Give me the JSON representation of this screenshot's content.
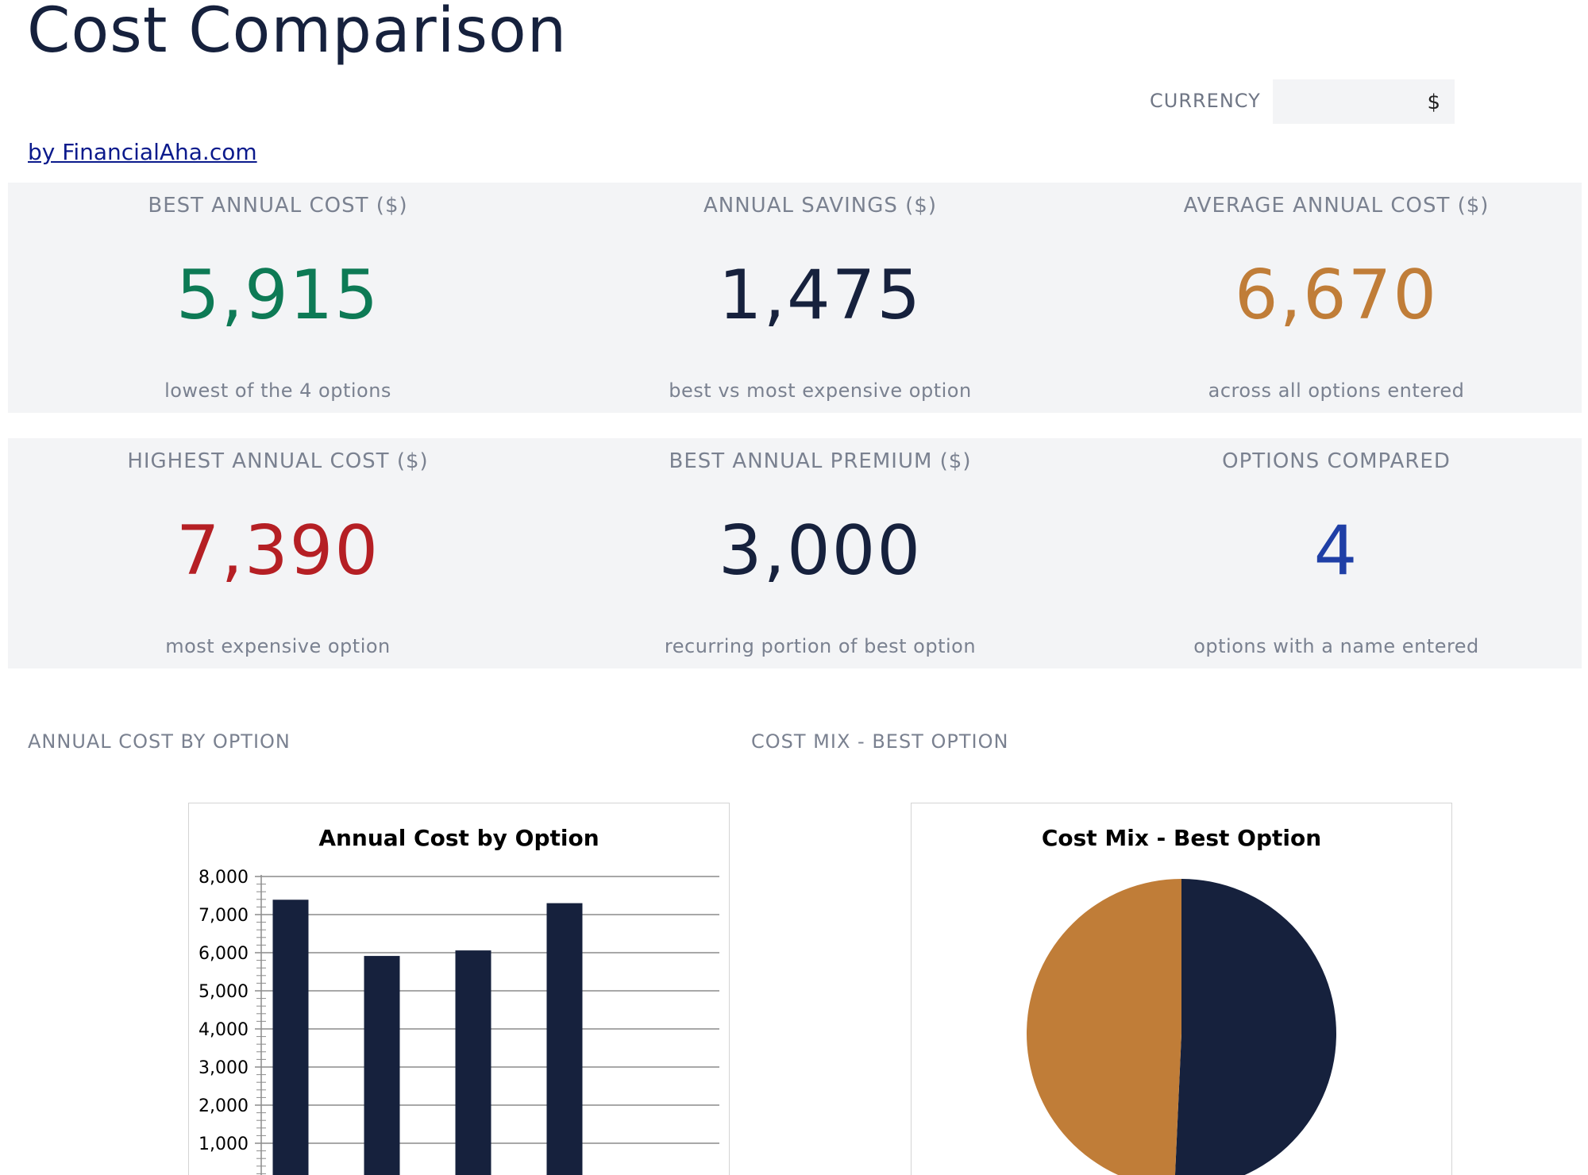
{
  "header": {
    "title": "Cost Comparison",
    "byline": "by FinancialAha.com",
    "currency_label": "CURRENCY",
    "currency_value": "$"
  },
  "kpis": [
    {
      "label": "BEST ANNUAL COST ($)",
      "value": "5,915",
      "sub": "lowest of the 4 options",
      "color": "#0d7a55"
    },
    {
      "label": "ANNUAL SAVINGS ($)",
      "value": "1,475",
      "sub": "best vs most expensive option",
      "color": "#16213d"
    },
    {
      "label": "AVERAGE ANNUAL COST ($)",
      "value": "6,670",
      "sub": "across all options entered",
      "color": "#c07d38"
    },
    {
      "label": "HIGHEST ANNUAL COST ($)",
      "value": "7,390",
      "sub": "most expensive option",
      "color": "#b51f24"
    },
    {
      "label": "BEST ANNUAL PREMIUM ($)",
      "value": "3,000",
      "sub": "recurring portion of best option",
      "color": "#16213d"
    },
    {
      "label": "OPTIONS COMPARED",
      "value": "4",
      "sub": "options with a name entered",
      "color": "#1f3fa6"
    }
  ],
  "sections": {
    "bar_label": "ANNUAL COST BY OPTION",
    "pie_label": "COST MIX - BEST OPTION"
  },
  "chart_data": [
    {
      "type": "bar",
      "title": "Annual Cost by Option",
      "categories": [
        "",
        "",
        "",
        ""
      ],
      "values": [
        7390,
        5915,
        6060,
        7300
      ],
      "ylim": [
        0,
        8000
      ],
      "yticks": [
        "1,000",
        "2,000",
        "3,000",
        "4,000",
        "5,000",
        "6,000",
        "7,000",
        "8,000"
      ],
      "grid": true,
      "bar_color": "#16213d"
    },
    {
      "type": "pie",
      "title": "Cost Mix - Best Option",
      "values": [
        3000,
        2915
      ],
      "colors": [
        "#16213d",
        "#c07d38"
      ]
    }
  ]
}
